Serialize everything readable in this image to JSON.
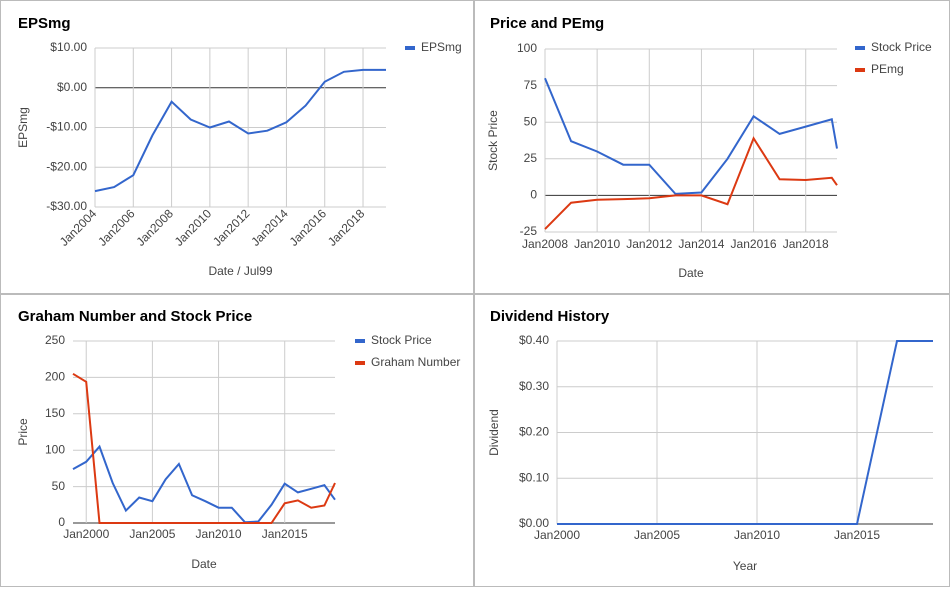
{
  "chart_data": [
    {
      "type": "line",
      "title": "EPSmg",
      "xlabel": "Date / Jul99",
      "ylabel": "EPSmg",
      "x": [
        2004,
        2005,
        2006,
        2007,
        2008,
        2009,
        2010,
        2011,
        2012,
        2013,
        2014,
        2015,
        2016,
        2017,
        2018,
        2019.2
      ],
      "series": [
        {
          "name": "EPSmg",
          "color": "#3366cc",
          "values": [
            -26,
            -25,
            -22,
            -12,
            -3.5,
            -8,
            -10,
            -8.5,
            -11.5,
            -10.8,
            -8.7,
            -4.5,
            1.5,
            4,
            4.5,
            4.5
          ]
        }
      ],
      "xlim": [
        2004,
        2019.2
      ],
      "xticks": [
        {
          "value": 2004,
          "label": "Jan2004"
        },
        {
          "value": 2006,
          "label": "Jan2006"
        },
        {
          "value": 2008,
          "label": "Jan2008"
        },
        {
          "value": 2010,
          "label": "Jan2010"
        },
        {
          "value": 2012,
          "label": "Jan2012"
        },
        {
          "value": 2014,
          "label": "Jan2014"
        },
        {
          "value": 2016,
          "label": "Jan2016"
        },
        {
          "value": 2018,
          "label": "Jan2018"
        }
      ],
      "ylim": [
        -30,
        10
      ],
      "yticks": [
        {
          "value": -30,
          "label": "-$30.00"
        },
        {
          "value": -20,
          "label": "-$20.00"
        },
        {
          "value": -10,
          "label": "-$10.00"
        },
        {
          "value": 0,
          "label": "$0.00"
        },
        {
          "value": 10,
          "label": "$10.00"
        }
      ],
      "grid": true,
      "legend": "right"
    },
    {
      "type": "line",
      "title": "Price and PEmg",
      "xlabel": "Date",
      "ylabel": "Stock Price",
      "x": [
        2008,
        2009,
        2010,
        2011,
        2012,
        2013,
        2014,
        2015,
        2016,
        2017,
        2018,
        2019,
        2019.2
      ],
      "series": [
        {
          "name": "Stock Price",
          "color": "#3366cc",
          "values": [
            80,
            37,
            30,
            21,
            21,
            1,
            2,
            25,
            54,
            42,
            47,
            52,
            32
          ]
        },
        {
          "name": "PEmg",
          "color": "#dc3912",
          "values": [
            -23,
            -5,
            -3,
            -2.5,
            -2,
            0,
            0,
            -6,
            39,
            11,
            10.5,
            12,
            7
          ]
        }
      ],
      "xlim": [
        2008,
        2019.2
      ],
      "xticks": [
        {
          "value": 2008,
          "label": "Jan2008"
        },
        {
          "value": 2010,
          "label": "Jan2010"
        },
        {
          "value": 2012,
          "label": "Jan2012"
        },
        {
          "value": 2014,
          "label": "Jan2014"
        },
        {
          "value": 2016,
          "label": "Jan2016"
        },
        {
          "value": 2018,
          "label": "Jan2018"
        }
      ],
      "ylim": [
        -25,
        100
      ],
      "yticks": [
        -25,
        0,
        25,
        50,
        75,
        100
      ],
      "grid": true,
      "legend": "right"
    },
    {
      "type": "line",
      "title": "Graham Number and Stock Price",
      "xlabel": "Date",
      "ylabel": "Price",
      "x": [
        1999,
        2000,
        2001,
        2002,
        2003,
        2004,
        2005,
        2006,
        2007,
        2008,
        2009,
        2010,
        2011,
        2012,
        2013,
        2014,
        2015,
        2016,
        2017,
        2018,
        2018.8
      ],
      "series": [
        {
          "name": "Stock Price",
          "color": "#3366cc",
          "values": [
            74,
            84,
            105,
            55,
            17,
            35,
            30,
            60,
            81,
            38,
            30,
            21,
            21,
            1,
            2,
            25,
            54,
            42,
            47,
            52,
            32
          ]
        },
        {
          "name": "Graham Number",
          "color": "#dc3912",
          "values": [
            205,
            194,
            0,
            0,
            0,
            0,
            0,
            0,
            0,
            0,
            0,
            0,
            0,
            0,
            0,
            0,
            27,
            31,
            21,
            24,
            55
          ]
        }
      ],
      "xlim": [
        1999,
        2018.8
      ],
      "xticks": [
        {
          "value": 2000,
          "label": "Jan2000"
        },
        {
          "value": 2005,
          "label": "Jan2005"
        },
        {
          "value": 2010,
          "label": "Jan2010"
        },
        {
          "value": 2015,
          "label": "Jan2015"
        }
      ],
      "ylim": [
        0,
        250
      ],
      "yticks": [
        0,
        50,
        100,
        150,
        200,
        250
      ],
      "grid": true,
      "legend": "right"
    },
    {
      "type": "line",
      "title": "Dividend History",
      "xlabel": "Year",
      "ylabel": "Dividend",
      "x": [
        2000,
        2015,
        2017,
        2018.8
      ],
      "series": [
        {
          "color": "#3366cc",
          "values": [
            0,
            0,
            0.4,
            0.4
          ]
        }
      ],
      "xlim": [
        2000,
        2018.8
      ],
      "xticks": [
        {
          "value": 2000,
          "label": "Jan2000"
        },
        {
          "value": 2005,
          "label": "Jan2005"
        },
        {
          "value": 2010,
          "label": "Jan2010"
        },
        {
          "value": 2015,
          "label": "Jan2015"
        }
      ],
      "ylim": [
        0,
        0.4
      ],
      "yticks": [
        {
          "value": 0,
          "label": "$0.00"
        },
        {
          "value": 0.1,
          "label": "$0.10"
        },
        {
          "value": 0.2,
          "label": "$0.20"
        },
        {
          "value": 0.3,
          "label": "$0.30"
        },
        {
          "value": 0.4,
          "label": "$0.40"
        }
      ],
      "grid": true
    }
  ]
}
